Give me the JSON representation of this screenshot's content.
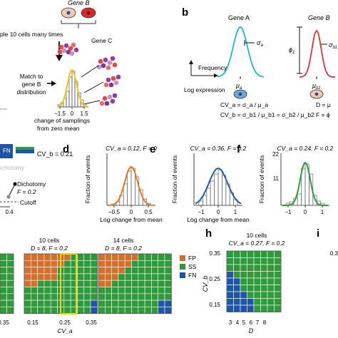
{
  "panel_letters": {
    "b": "b",
    "d": "d",
    "e": "e",
    "f": "f",
    "h": "h",
    "i": "i"
  },
  "panel_a": {
    "gene_b": "Gene B",
    "sample_text": "ple 10 cells many times",
    "gene_c": "Gene C",
    "match_text": [
      "Match to",
      "gene B",
      "distribution"
    ],
    "xticks": [
      "−1.5",
      "0",
      "1.5"
    ],
    "xlabel_lines": [
      "change of samplings",
      "from zero mean"
    ]
  },
  "panel_b": {
    "gene_a": "Gene A",
    "gene_b_italic": "Gene B",
    "y_axis": "Frequency",
    "x_axis": "Log expression",
    "sigma_a": "σ",
    "sigma_a_sub": "a",
    "mu_a": "μ",
    "mu_a_sub": "a",
    "phi1": "ϕ",
    "phi1_sub": "1",
    "sigma_b1": "σ",
    "sigma_b1_sub": "b1",
    "mu_b1": "μ",
    "mu_b1_sub": "b1",
    "eq_cva": "CV_a = σ_a / μ_a",
    "eq_cvb": "CV_b = σ_b1 / μ_b1 = σ_b2 / μ_b2",
    "eq_d": "D = μ",
    "eq_f": "F = ϕ"
  },
  "panel_c": {
    "legend_fn": "FN",
    "cvb_label": "CV_b = 0.21",
    "dichotomy_faded": "ichotomy",
    "dichotomy": "Dichotomy",
    "f_value": "F = 0.2",
    "cutoff": "Cutoff",
    "tick": "0.4"
  },
  "histograms": [
    {
      "id": "d",
      "title": "CV_a = 0.12, F = 0",
      "ylabel": "Fraction of events",
      "xlabel": "Log change from mean",
      "xticks": [
        "−0.5",
        "0",
        "0.5"
      ],
      "yticks": [],
      "color": "#e07b22"
    },
    {
      "id": "e",
      "title": "CV_a = 0.36, F = 0.2",
      "ylabel": "Fraction of events",
      "xlabel": "Log change from mean",
      "xticks": [
        "−1",
        "0",
        "1"
      ],
      "yticks": [],
      "color": "#1f5fa8"
    },
    {
      "id": "f",
      "title": "CV_a = 0.24, F = 0.2",
      "ylabel": "Fraction of events",
      "xlabel": "",
      "xticks": [
        "−1",
        "0",
        "1"
      ],
      "yticks": [
        "22",
        "11"
      ],
      "color": "#2e9e3a"
    }
  ],
  "panel_g": {
    "grid1_title": "10 cells",
    "grid1_sub": "D = 8, F = 0.2",
    "grid2_title": "14 cells",
    "grid2_sub": "D = 8, F = 0.2",
    "xticks_left": [
      "0.35"
    ],
    "xticks": [
      "0.15",
      "0.25",
      "0.35"
    ],
    "xlabel": "CV_a",
    "legend": [
      {
        "label": "FP",
        "color": "#d2702c"
      },
      {
        "label": "SS",
        "color": "#2e9a3a"
      },
      {
        "label": "FN",
        "color": "#1f55a8"
      }
    ]
  },
  "panel_h": {
    "title": "10 cells",
    "sub": "CV_a = 0.27, F = 0.2",
    "ylabel": "CV_b",
    "yticks": [
      "0.35",
      "0.25",
      "0.15"
    ],
    "xticks": [
      "3",
      "4",
      "5",
      "6",
      "7",
      "8"
    ],
    "xlabel": "D",
    "right_tick": "0.3"
  },
  "colors": {
    "orange": "#d2702c",
    "green": "#2e9a3a",
    "blue": "#1f55a8",
    "yellow": "#f0d21a",
    "cyan": "#1fb2e0",
    "red": "#d92a2a"
  }
}
